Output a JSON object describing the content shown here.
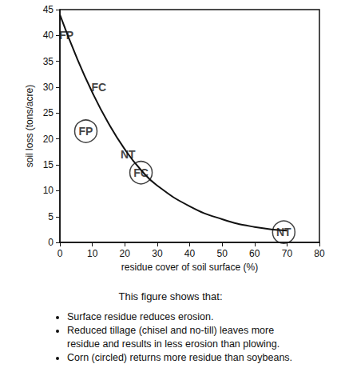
{
  "chart_data": {
    "type": "line",
    "x": [
      0,
      5,
      10,
      15,
      20,
      25,
      30,
      40,
      50,
      60,
      70
    ],
    "values": [
      44,
      36,
      29,
      23,
      18,
      14,
      11,
      7,
      4.5,
      3,
      2.3
    ],
    "color": "#111111",
    "xlabel": "residue cover of soil surface (%)",
    "ylabel": "soil loss (tons/acre)",
    "xlim": [
      0,
      80
    ],
    "xticks": [
      0,
      10,
      20,
      30,
      40,
      50,
      60,
      70,
      80
    ],
    "ylim": [
      0,
      45
    ],
    "yticks": [
      0,
      5,
      10,
      15,
      20,
      25,
      30,
      35,
      40,
      45
    ],
    "grid": false,
    "annotations": [
      {
        "text": "FP",
        "x": 2,
        "y": 40
      },
      {
        "text": "FC",
        "x": 12,
        "y": 30
      },
      {
        "text": "FP",
        "x": 8,
        "y": 21.5,
        "marker": "circle"
      },
      {
        "text": "NT",
        "x": 21,
        "y": 17
      },
      {
        "text": "FC",
        "x": 25,
        "y": 13.5,
        "marker": "circle"
      },
      {
        "text": "NT",
        "x": 69,
        "y": 2,
        "marker": "circle"
      }
    ],
    "caption": "This figure shows that:",
    "notes": [
      "Surface residue reduces erosion.",
      "Reduced tillage (chisel and no-till) leaves more residue and results in less erosion than plowing.",
      "Corn (circled) returns more residue than soybeans."
    ]
  }
}
